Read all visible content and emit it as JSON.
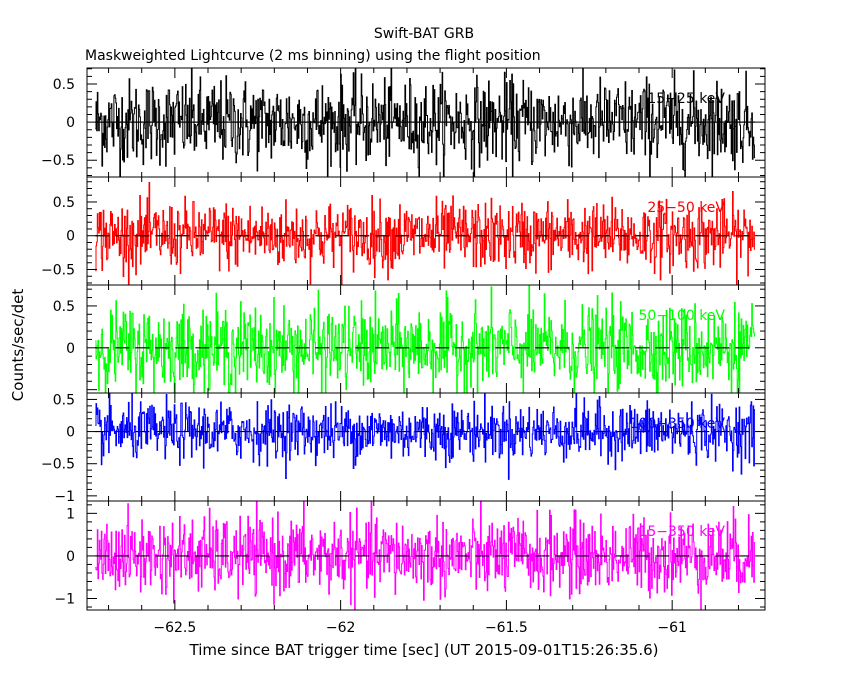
{
  "chart_data": {
    "type": "line",
    "title": "Swift-BAT GRB",
    "subtitle": "Maskweighted Lightcurve (2 ms binning) using the flight position",
    "xlabel": "Time since BAT trigger time [sec] (UT 2015-09-01T15:26:35.6)",
    "ylabel": "Counts/sec/det",
    "xlim": [
      -62.765,
      -60.72
    ],
    "data_range": [
      -62.74,
      -60.75
    ],
    "bin_width_sec": 0.002,
    "x_ticks": [
      -62.5,
      -62,
      -61.5,
      -61
    ],
    "x_tick_labels": [
      "−62.5",
      "−62",
      "−61.5",
      "−61"
    ],
    "panels": [
      {
        "name": "15-25 keV",
        "label": "15−25 keV",
        "color": "#000000",
        "ylim": [
          -0.72,
          0.71
        ],
        "y_ticks": [
          0.5,
          0,
          -0.5
        ],
        "y_tick_labels": [
          "0.5",
          "0",
          "−0.5"
        ],
        "noise_sigma": 0.28,
        "clip": [
          -0.72,
          0.71
        ]
      },
      {
        "name": "25-50 keV",
        "label": "25−50 keV",
        "color": "#ff0000",
        "ylim": [
          -0.73,
          0.87
        ],
        "y_ticks": [
          0.5,
          0,
          -0.5
        ],
        "y_tick_labels": [
          "0.5",
          "0",
          "−0.5"
        ],
        "noise_sigma": 0.25,
        "clip": [
          -0.73,
          0.85
        ]
      },
      {
        "name": "50-100 keV",
        "label": "50−100 keV",
        "color": "#00ff00",
        "ylim": [
          -0.54,
          0.75
        ],
        "y_ticks": [
          0.5,
          0
        ],
        "y_tick_labels": [
          "0.5",
          "0"
        ],
        "noise_sigma": 0.25,
        "clip": [
          -0.54,
          0.75
        ]
      },
      {
        "name": "100-350 keV",
        "label": "100−350 keV",
        "color": "#0000ff",
        "ylim": [
          -1.08,
          0.6
        ],
        "y_ticks": [
          0.5,
          0,
          -0.5,
          -1
        ],
        "y_tick_labels": [
          "0.5",
          "0",
          "−0.5",
          "−1"
        ],
        "noise_sigma": 0.22,
        "clip": [
          -1.05,
          0.6
        ]
      },
      {
        "name": "15-350 keV",
        "label": "15−350 keV",
        "color": "#ff00ff",
        "ylim": [
          -1.27,
          1.29
        ],
        "y_ticks": [
          1,
          0,
          -1
        ],
        "y_tick_labels": [
          "1",
          "0",
          "−1"
        ],
        "noise_sigma": 0.45,
        "clip": [
          -1.27,
          1.29
        ]
      }
    ]
  }
}
